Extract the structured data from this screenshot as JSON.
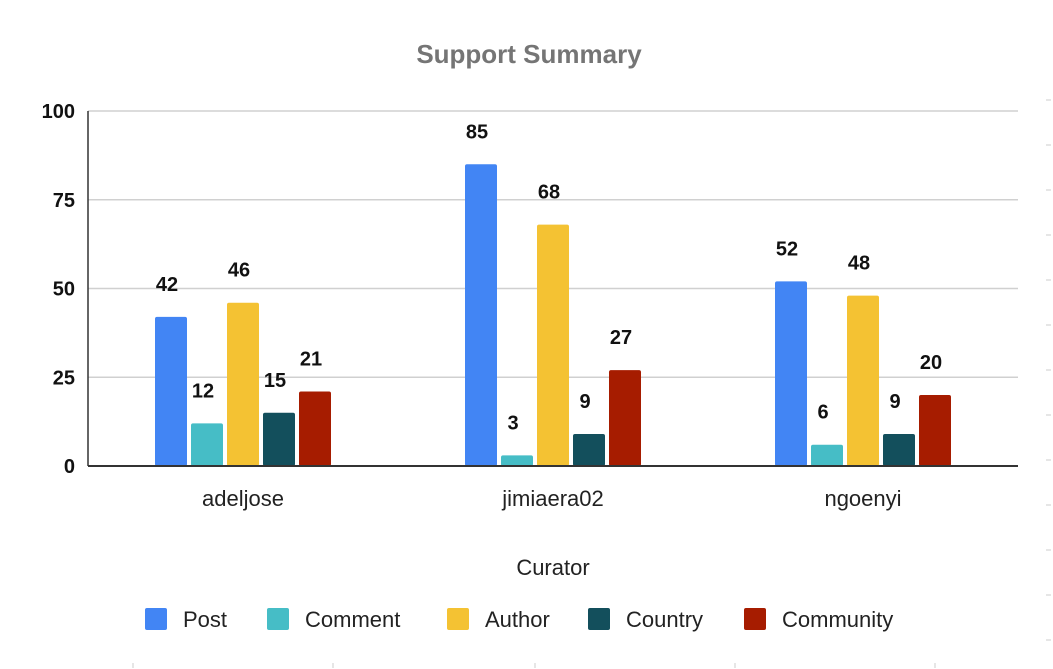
{
  "chart_data": {
    "type": "bar",
    "title": "Support Summary",
    "xlabel": "Curator",
    "ylabel": "",
    "ylim": [
      0,
      100
    ],
    "yticks": [
      0,
      25,
      50,
      75,
      100
    ],
    "grid": true,
    "legend": "bottom",
    "categories": [
      "adeljose",
      "jimiaera02",
      "ngoenyi"
    ],
    "series": [
      {
        "name": "Post",
        "color": "#4285f4",
        "values": [
          42,
          85,
          52
        ]
      },
      {
        "name": "Comment",
        "color": "#46bdc6",
        "values": [
          12,
          3,
          6
        ]
      },
      {
        "name": "Author",
        "color": "#f4c233",
        "values": [
          46,
          68,
          48
        ]
      },
      {
        "name": "Country",
        "color": "#134f5c",
        "values": [
          15,
          9,
          9
        ]
      },
      {
        "name": "Community",
        "color": "#a61c00",
        "values": [
          21,
          27,
          20
        ]
      }
    ]
  }
}
